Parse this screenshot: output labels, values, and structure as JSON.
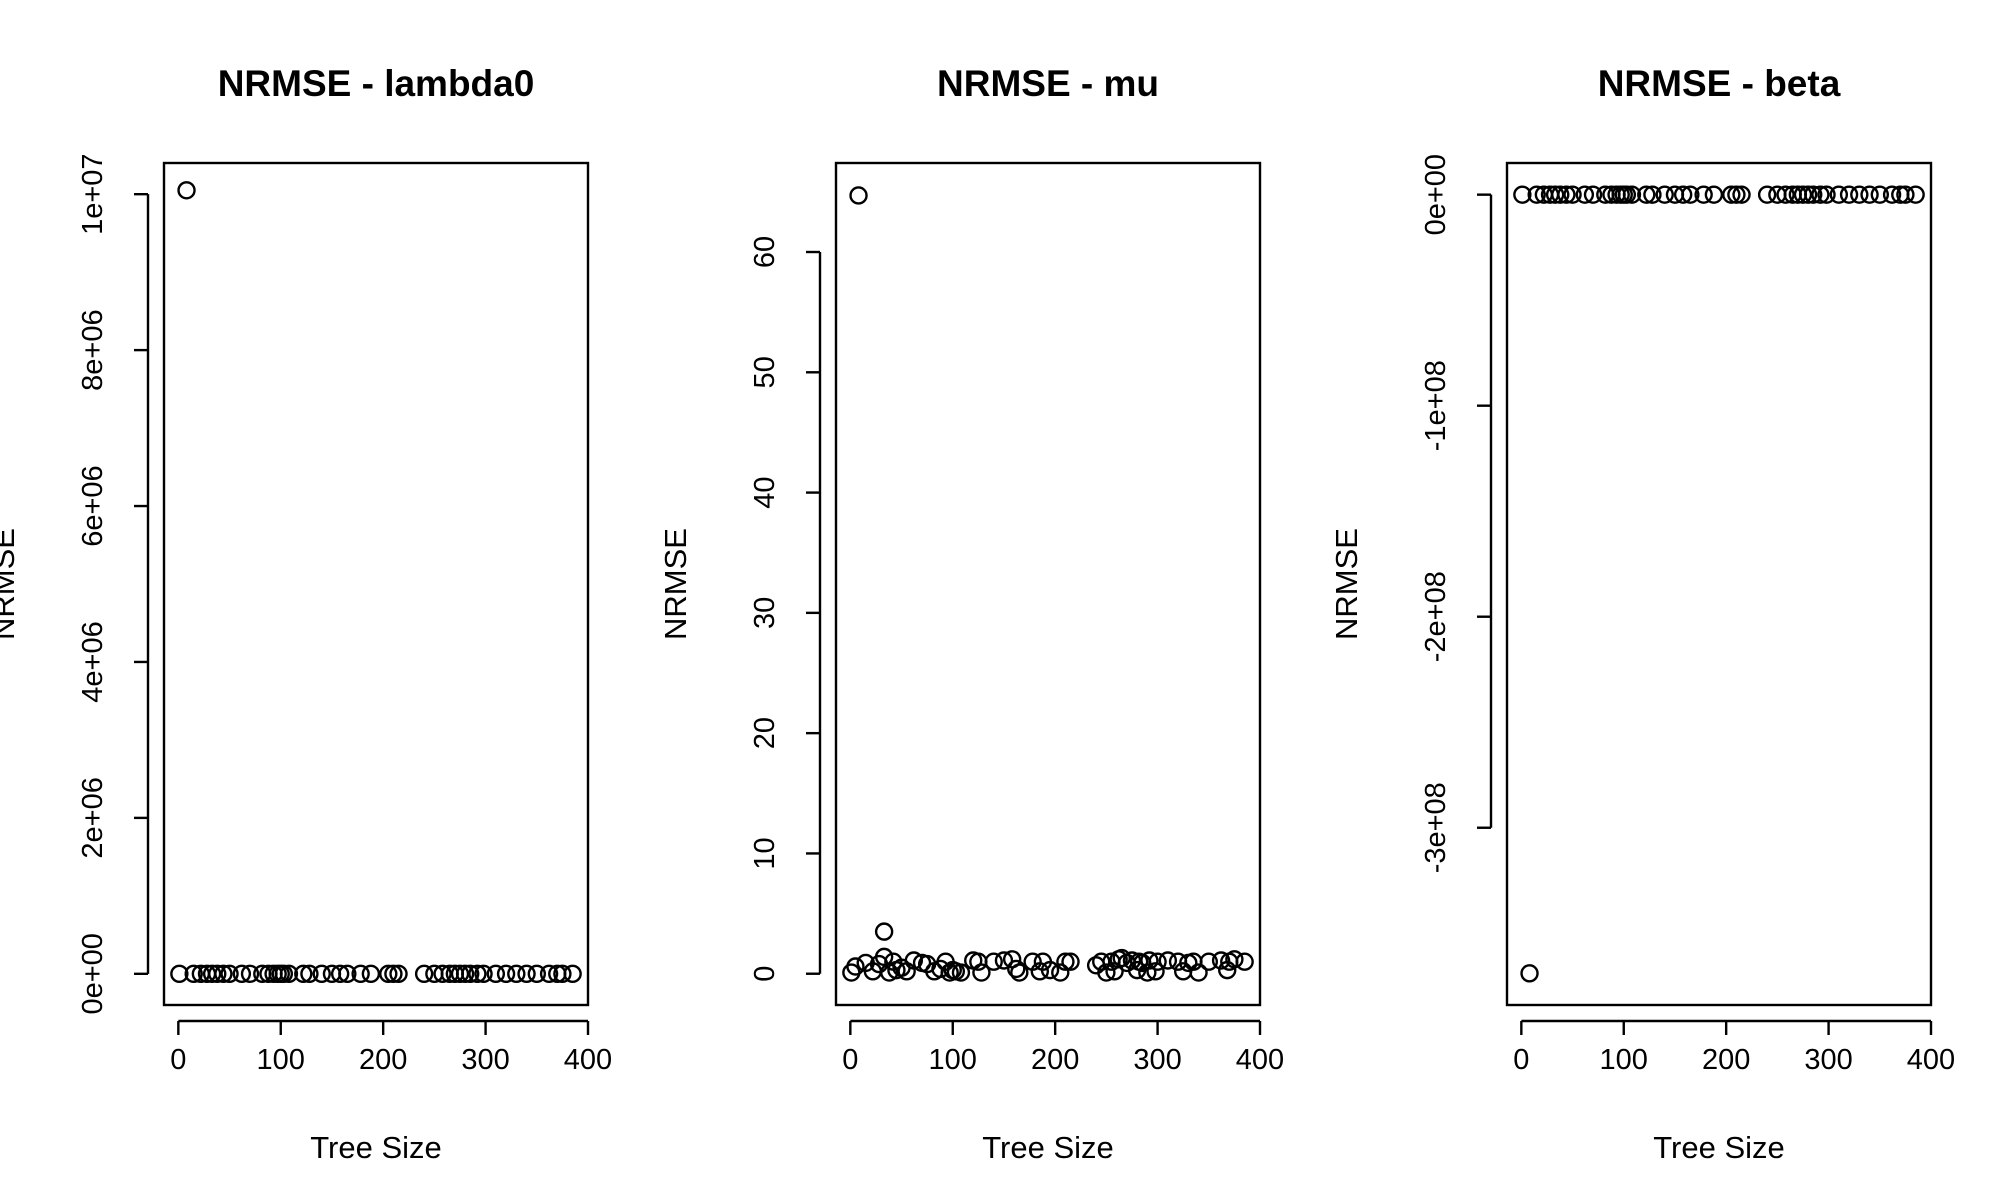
{
  "chart_data": [
    {
      "type": "scatter",
      "title": "NRMSE - lambda0",
      "xlabel": "Tree Size",
      "ylabel": "NRMSE",
      "xlim": [
        -14,
        400
      ],
      "ylim": [
        -400000,
        10400000
      ],
      "xticks": [
        0,
        100,
        200,
        300,
        400
      ],
      "xtick_labels": [
        "0",
        "100",
        "200",
        "300",
        "400"
      ],
      "yticks": [
        0,
        2000000,
        4000000,
        6000000,
        8000000,
        10000000
      ],
      "ytick_labels": [
        "0e+00",
        "2e+06",
        "4e+06",
        "6e+06",
        "8e+06",
        "1e+07"
      ],
      "grid": false,
      "x": [
        8,
        1,
        15,
        22,
        28,
        33,
        38,
        44,
        50,
        62,
        70,
        82,
        88,
        93,
        97,
        100,
        103,
        108,
        122,
        128,
        140,
        150,
        158,
        165,
        178,
        188,
        205,
        210,
        215,
        240,
        250,
        258,
        265,
        270,
        275,
        280,
        285,
        292,
        298,
        310,
        320,
        330,
        340,
        350,
        362,
        370,
        375,
        385
      ],
      "y": [
        10050000,
        0,
        0,
        0,
        0,
        0,
        0,
        0,
        0,
        0,
        0,
        0,
        0,
        0,
        0,
        0,
        0,
        0,
        0,
        0,
        0,
        0,
        0,
        0,
        0,
        0,
        0,
        0,
        0,
        0,
        0,
        0,
        0,
        0,
        0,
        0,
        0,
        0,
        0,
        0,
        0,
        0,
        0,
        0,
        0,
        0,
        0,
        0
      ]
    },
    {
      "type": "scatter",
      "title": "NRMSE - mu",
      "xlabel": "Tree Size",
      "ylabel": "NRMSE",
      "xlim": [
        -14,
        400
      ],
      "ylim": [
        -2.6,
        67.4
      ],
      "xticks": [
        0,
        100,
        200,
        300,
        400
      ],
      "xtick_labels": [
        "0",
        "100",
        "200",
        "300",
        "400"
      ],
      "yticks": [
        0,
        10,
        20,
        30,
        40,
        50,
        60
      ],
      "ytick_labels": [
        "0",
        "10",
        "20",
        "30",
        "40",
        "50",
        "60"
      ],
      "grid": false,
      "x": [
        8,
        33,
        1,
        5,
        15,
        22,
        28,
        33,
        38,
        42,
        45,
        50,
        55,
        62,
        70,
        75,
        82,
        88,
        93,
        97,
        100,
        103,
        108,
        120,
        125,
        128,
        140,
        150,
        158,
        162,
        165,
        178,
        185,
        188,
        195,
        205,
        210,
        215,
        240,
        245,
        250,
        255,
        258,
        262,
        265,
        270,
        275,
        280,
        282,
        285,
        290,
        292,
        298,
        300,
        310,
        320,
        325,
        330,
        335,
        340,
        350,
        362,
        368,
        370,
        375,
        385
      ],
      "y": [
        64.7,
        3.5,
        0.1,
        0.6,
        0.9,
        0.2,
        0.8,
        1.4,
        0.1,
        1.0,
        0.3,
        0.5,
        0.2,
        1.1,
        0.9,
        0.8,
        0.2,
        0.4,
        1.0,
        0.1,
        0.3,
        0.2,
        0.1,
        1.1,
        1.0,
        0.1,
        1.0,
        1.1,
        1.2,
        0.4,
        0.1,
        1.0,
        0.2,
        1.0,
        0.3,
        0.1,
        1.0,
        1.0,
        0.7,
        1.0,
        0.1,
        1.0,
        0.2,
        1.2,
        1.3,
        0.9,
        1.1,
        0.3,
        1.0,
        0.9,
        0.1,
        1.1,
        0.2,
        1.0,
        1.1,
        1.0,
        0.2,
        0.9,
        1.0,
        0.1,
        1.0,
        1.1,
        0.3,
        1.0,
        1.2,
        1.0
      ]
    },
    {
      "type": "scatter",
      "title": "NRMSE - beta",
      "xlabel": "Tree Size",
      "ylabel": "NRMSE",
      "xlim": [
        -14,
        400
      ],
      "ylim": [
        -384000000,
        15000000
      ],
      "xticks": [
        0,
        100,
        200,
        300,
        400
      ],
      "xtick_labels": [
        "0",
        "100",
        "200",
        "300",
        "400"
      ],
      "yticks": [
        0,
        -100000000,
        -200000000,
        -300000000
      ],
      "ytick_labels": [
        "0e+00",
        "-1e+08",
        "-2e+08",
        "-3e+08"
      ],
      "grid": false,
      "x": [
        8,
        1,
        15,
        22,
        28,
        33,
        38,
        44,
        50,
        62,
        70,
        82,
        88,
        93,
        97,
        100,
        103,
        108,
        122,
        128,
        140,
        150,
        158,
        165,
        178,
        188,
        205,
        210,
        215,
        240,
        250,
        258,
        265,
        270,
        275,
        280,
        285,
        292,
        298,
        310,
        320,
        330,
        340,
        350,
        362,
        370,
        375,
        385
      ],
      "y": [
        -369000000,
        0,
        0,
        0,
        0,
        0,
        0,
        0,
        0,
        0,
        0,
        0,
        0,
        0,
        0,
        0,
        0,
        0,
        0,
        0,
        0,
        0,
        0,
        0,
        0,
        0,
        0,
        0,
        0,
        0,
        0,
        0,
        0,
        0,
        0,
        0,
        0,
        0,
        0,
        0,
        0,
        0,
        0,
        0,
        0,
        0,
        0,
        0
      ]
    }
  ]
}
